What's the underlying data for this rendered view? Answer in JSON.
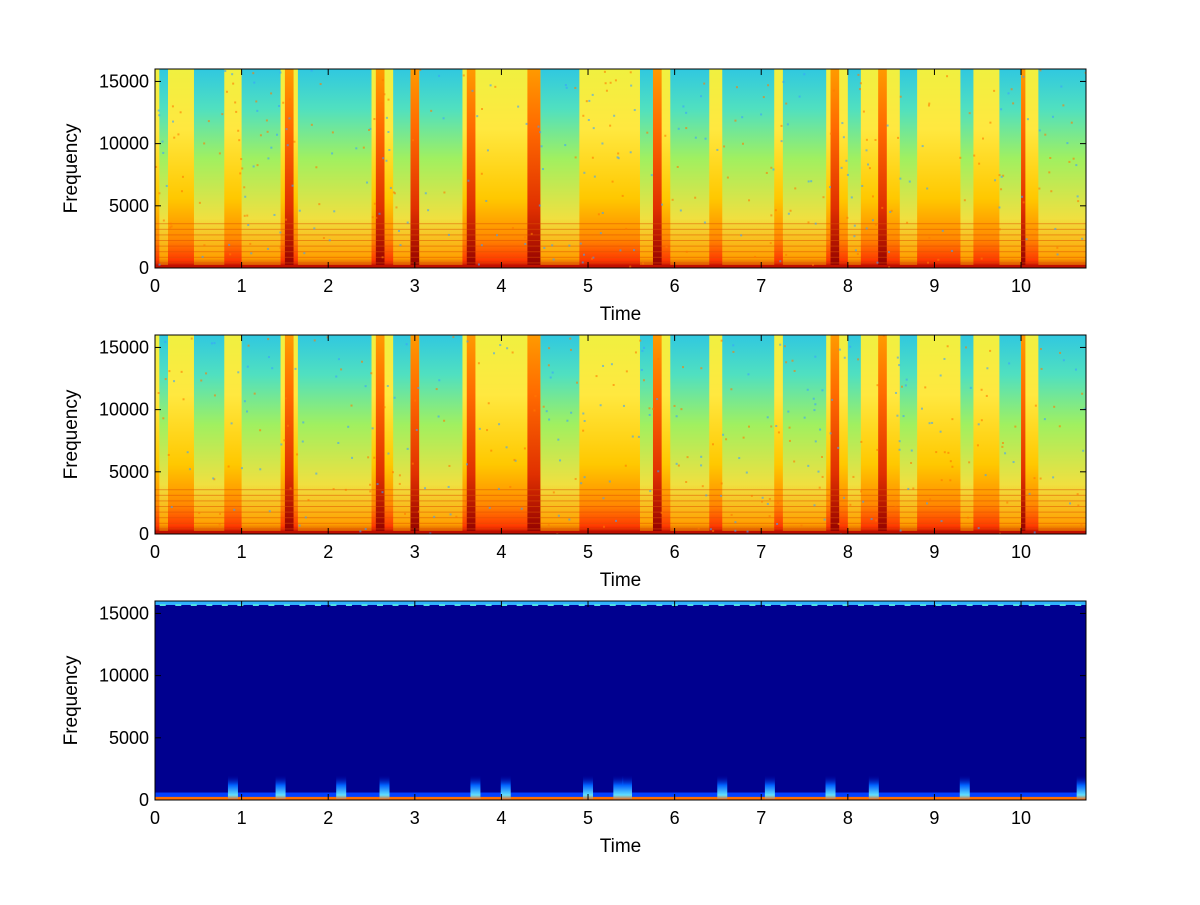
{
  "chart_data": [
    {
      "type": "heatmap",
      "title": "",
      "xlabel": "Time",
      "ylabel": "Frequency",
      "xlim": [
        0,
        10.75
      ],
      "ylim": [
        0,
        16000
      ],
      "x_ticks": [
        "0",
        "1",
        "2",
        "3",
        "4",
        "5",
        "6",
        "7",
        "8",
        "9",
        "10"
      ],
      "y_ticks": [
        "0",
        "5000",
        "10000",
        "15000"
      ],
      "colormap": "jet",
      "description_level": "high energy: mostly yellow/orange with red low-frequency bands; cyan/blue in high frequencies during quiet segments",
      "quiet_segments_seconds": [
        [
          0.05,
          0.15
        ],
        [
          0.45,
          0.8
        ],
        [
          1.0,
          1.45
        ],
        [
          1.65,
          2.5
        ],
        [
          2.75,
          2.95
        ],
        [
          3.05,
          3.55
        ],
        [
          4.45,
          4.9
        ],
        [
          5.6,
          5.75
        ],
        [
          5.95,
          6.4
        ],
        [
          6.55,
          7.15
        ],
        [
          7.25,
          7.75
        ],
        [
          8.0,
          8.15
        ],
        [
          8.6,
          8.8
        ],
        [
          9.3,
          9.45
        ],
        [
          9.75,
          10.0
        ],
        [
          10.2,
          10.75
        ]
      ],
      "loud_segments_seconds": [
        [
          1.5,
          1.6
        ],
        [
          2.55,
          2.65
        ],
        [
          2.95,
          3.05
        ],
        [
          3.6,
          3.7
        ],
        [
          4.3,
          4.45
        ],
        [
          5.75,
          5.85
        ],
        [
          7.8,
          7.9
        ],
        [
          8.35,
          8.45
        ],
        [
          10.0,
          10.05
        ]
      ]
    },
    {
      "type": "heatmap",
      "title": "",
      "xlabel": "Time",
      "ylabel": "Frequency",
      "xlim": [
        0,
        10.75
      ],
      "ylim": [
        0,
        16000
      ],
      "x_ticks": [
        "0",
        "1",
        "2",
        "3",
        "4",
        "5",
        "6",
        "7",
        "8",
        "9",
        "10"
      ],
      "y_ticks": [
        "0",
        "5000",
        "10000",
        "15000"
      ],
      "colormap": "jet",
      "description_level": "nearly identical to first panel",
      "quiet_segments_seconds": [
        [
          0.05,
          0.15
        ],
        [
          0.45,
          0.8
        ],
        [
          1.0,
          1.45
        ],
        [
          1.65,
          2.5
        ],
        [
          2.75,
          2.95
        ],
        [
          3.05,
          3.55
        ],
        [
          4.45,
          4.9
        ],
        [
          5.6,
          5.75
        ],
        [
          5.95,
          6.4
        ],
        [
          6.55,
          7.15
        ],
        [
          7.25,
          7.75
        ],
        [
          8.0,
          8.15
        ],
        [
          8.6,
          8.8
        ],
        [
          9.3,
          9.45
        ],
        [
          9.75,
          10.0
        ],
        [
          10.2,
          10.75
        ]
      ],
      "loud_segments_seconds": [
        [
          1.5,
          1.6
        ],
        [
          2.55,
          2.65
        ],
        [
          2.95,
          3.05
        ],
        [
          3.6,
          3.7
        ],
        [
          4.3,
          4.45
        ],
        [
          5.75,
          5.85
        ],
        [
          7.8,
          7.9
        ],
        [
          8.35,
          8.45
        ],
        [
          10.0,
          10.05
        ]
      ]
    },
    {
      "type": "heatmap",
      "title": "",
      "xlabel": "Time",
      "ylabel": "Frequency",
      "xlim": [
        0,
        10.75
      ],
      "ylim": [
        0,
        16000
      ],
      "x_ticks": [
        "0",
        "1",
        "2",
        "3",
        "4",
        "5",
        "6",
        "7",
        "8",
        "9",
        "10"
      ],
      "y_ticks": [
        "0",
        "5000",
        "10000",
        "15000"
      ],
      "colormap": "jet",
      "description_level": "almost all dark blue; energy only near 0-2000 Hz and a thin cyan line near 16000 Hz",
      "burst_times_seconds": [
        0.9,
        1.45,
        2.15,
        2.65,
        3.7,
        4.05,
        5.0,
        5.35,
        5.45,
        6.55,
        7.1,
        7.8,
        8.3,
        9.35,
        10.7
      ],
      "burst_peak_frequency": 2000
    }
  ],
  "colors": {
    "axis": "#000000",
    "background": "#ffffff"
  }
}
